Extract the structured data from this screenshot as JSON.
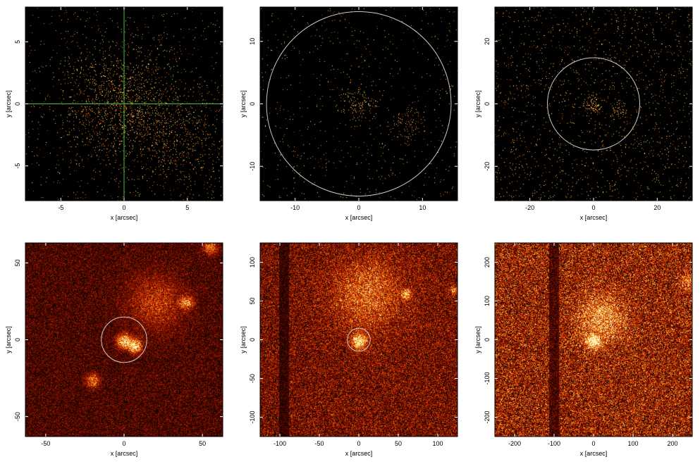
{
  "chart_data": [
    {
      "type": "heatmap",
      "xlabel": "x [arcsec]",
      "ylabel": "y [arcsec]",
      "xlim": [
        -7.8,
        7.8
      ],
      "ylim": [
        -7.8,
        7.8
      ],
      "xticks": [
        -5,
        0,
        5
      ],
      "yticks": [
        -5,
        0,
        5
      ],
      "circle_radius": null,
      "crosshair": true,
      "crosshair_color": "#3fbf3f",
      "density": 0.05,
      "blobs": [
        {
          "x": 0,
          "y": 0,
          "s": 2.5,
          "w": 0.35
        },
        {
          "x": 5,
          "y": -3,
          "s": 2.2,
          "w": 0.15
        }
      ],
      "grid": false
    },
    {
      "type": "heatmap",
      "xlabel": "x [arcsec]",
      "ylabel": "y [arcsec]",
      "xlim": [
        -15.5,
        15.5
      ],
      "ylim": [
        -15.5,
        15.5
      ],
      "xticks": [
        -10,
        0,
        10
      ],
      "yticks": [
        -10,
        0,
        10
      ],
      "circle_radius": 14.5,
      "crosshair": false,
      "density": 0.05,
      "blobs": [
        {
          "x": 0,
          "y": 0,
          "s": 1.5,
          "w": 0.3
        },
        {
          "x": 7.5,
          "y": -3,
          "s": 1.5,
          "w": 0.25
        }
      ],
      "grid": false
    },
    {
      "type": "heatmap",
      "xlabel": "x [arcsec]",
      "ylabel": "y [arcsec]",
      "xlim": [
        -31,
        31
      ],
      "ylim": [
        -31,
        31
      ],
      "xticks": [
        -20,
        0,
        20
      ],
      "yticks": [
        -20,
        0,
        20
      ],
      "circle_radius": 14.5,
      "crosshair": false,
      "density": 0.12,
      "blobs": [
        {
          "x": 0,
          "y": 0,
          "s": 1.5,
          "w": 0.7
        },
        {
          "x": 8,
          "y": -2,
          "s": 1.5,
          "w": 0.5
        },
        {
          "x": -27,
          "y": 2,
          "s": 1,
          "w": 0.3
        },
        {
          "x": 5,
          "y": -25,
          "s": 1,
          "w": 0.3
        }
      ],
      "grid": false
    },
    {
      "type": "heatmap",
      "xlabel": "x [arcsec]",
      "ylabel": "y [arcsec]",
      "xlim": [
        -63,
        63
      ],
      "ylim": [
        -63,
        63
      ],
      "xticks": [
        -50,
        0,
        50
      ],
      "yticks": [
        -50,
        0,
        50
      ],
      "circle_radius": 14.5,
      "crosshair": false,
      "density": 0.35,
      "blobs": [
        {
          "x": 0,
          "y": 0,
          "s": 3,
          "w": 0.8
        },
        {
          "x": 7,
          "y": -3,
          "s": 3,
          "w": 0.8
        },
        {
          "x": 20,
          "y": 25,
          "s": 12,
          "w": 0.3
        },
        {
          "x": 40,
          "y": 25,
          "s": 3,
          "w": 0.5
        },
        {
          "x": -20,
          "y": -25,
          "s": 3,
          "w": 0.5
        },
        {
          "x": 55,
          "y": 60,
          "s": 3,
          "w": 0.5
        }
      ],
      "grid": false
    },
    {
      "type": "heatmap",
      "xlabel": "x [arcsec]",
      "ylabel": "y [arcsec]",
      "xlim": [
        -125,
        125
      ],
      "ylim": [
        -125,
        125
      ],
      "xticks": [
        -100,
        -50,
        0,
        50,
        100
      ],
      "yticks": [
        -100,
        -50,
        0,
        50,
        100
      ],
      "circle_radius": 14.5,
      "crosshair": false,
      "density": 0.55,
      "blobs": [
        {
          "x": 0,
          "y": 0,
          "s": 6,
          "w": 0.85
        },
        {
          "x": 10,
          "y": 60,
          "s": 30,
          "w": 0.35
        },
        {
          "x": 60,
          "y": 60,
          "s": 4,
          "w": 0.6
        },
        {
          "x": 120,
          "y": 65,
          "s": 3,
          "w": 0.5
        }
      ],
      "stripe_x": -95,
      "grid": false
    },
    {
      "type": "heatmap",
      "xlabel": "x [arcsec]",
      "ylabel": "y [arcsec]",
      "xlim": [
        -250,
        250
      ],
      "ylim": [
        -250,
        250
      ],
      "xticks": [
        -200,
        -100,
        0,
        100,
        200
      ],
      "yticks": [
        -200,
        -100,
        0,
        100,
        200
      ],
      "circle_radius": null,
      "crosshair": false,
      "density": 0.75,
      "blobs": [
        {
          "x": 0,
          "y": 0,
          "s": 12,
          "w": 0.85
        },
        {
          "x": 20,
          "y": 60,
          "s": 40,
          "w": 0.45
        },
        {
          "x": 240,
          "y": 150,
          "s": 15,
          "w": 0.3
        }
      ],
      "stripe_x": -100,
      "grid": false
    }
  ]
}
